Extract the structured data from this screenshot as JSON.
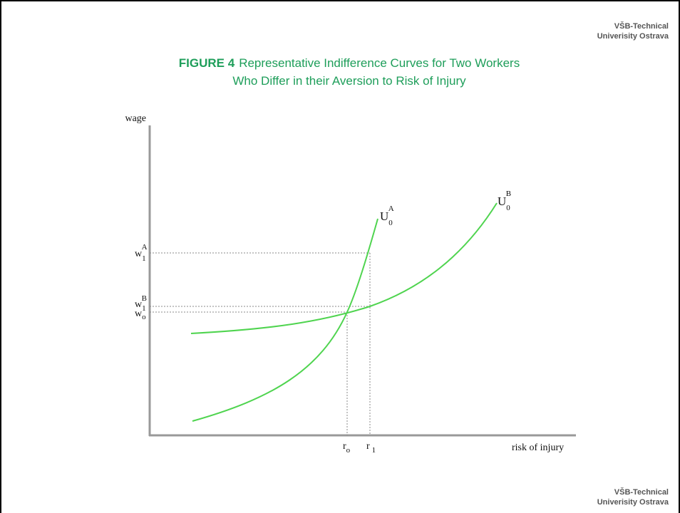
{
  "header": {
    "institution": [
      "VŠB-Technical",
      "Univerisity Ostrava"
    ]
  },
  "figure": {
    "number": "FIGURE 4",
    "title": [
      "Representative Indifference Curves for Two Workers",
      "Who Differ in their Aversion to Risk of Injury"
    ]
  },
  "axes": {
    "y_label": "wage",
    "x_label": "risk of injury"
  },
  "curves": [
    {
      "label": {
        "base": "U",
        "sub": "0",
        "sup": "A"
      }
    },
    {
      "label": {
        "base": "U",
        "sub": "0",
        "sup": "B"
      }
    }
  ],
  "wage_levels": [
    {
      "base": "w",
      "sub": "1",
      "sup": "A"
    },
    {
      "base": "w",
      "sub": "1",
      "sup": "B"
    },
    {
      "base": "w",
      "sub": "o"
    }
  ],
  "risk_levels": [
    {
      "base": "r",
      "sub": "o"
    },
    {
      "base": "r",
      "sub": "1"
    }
  ],
  "footer": {
    "institution": [
      "VŠB-Technical",
      "Univerisity Ostrava"
    ]
  }
}
